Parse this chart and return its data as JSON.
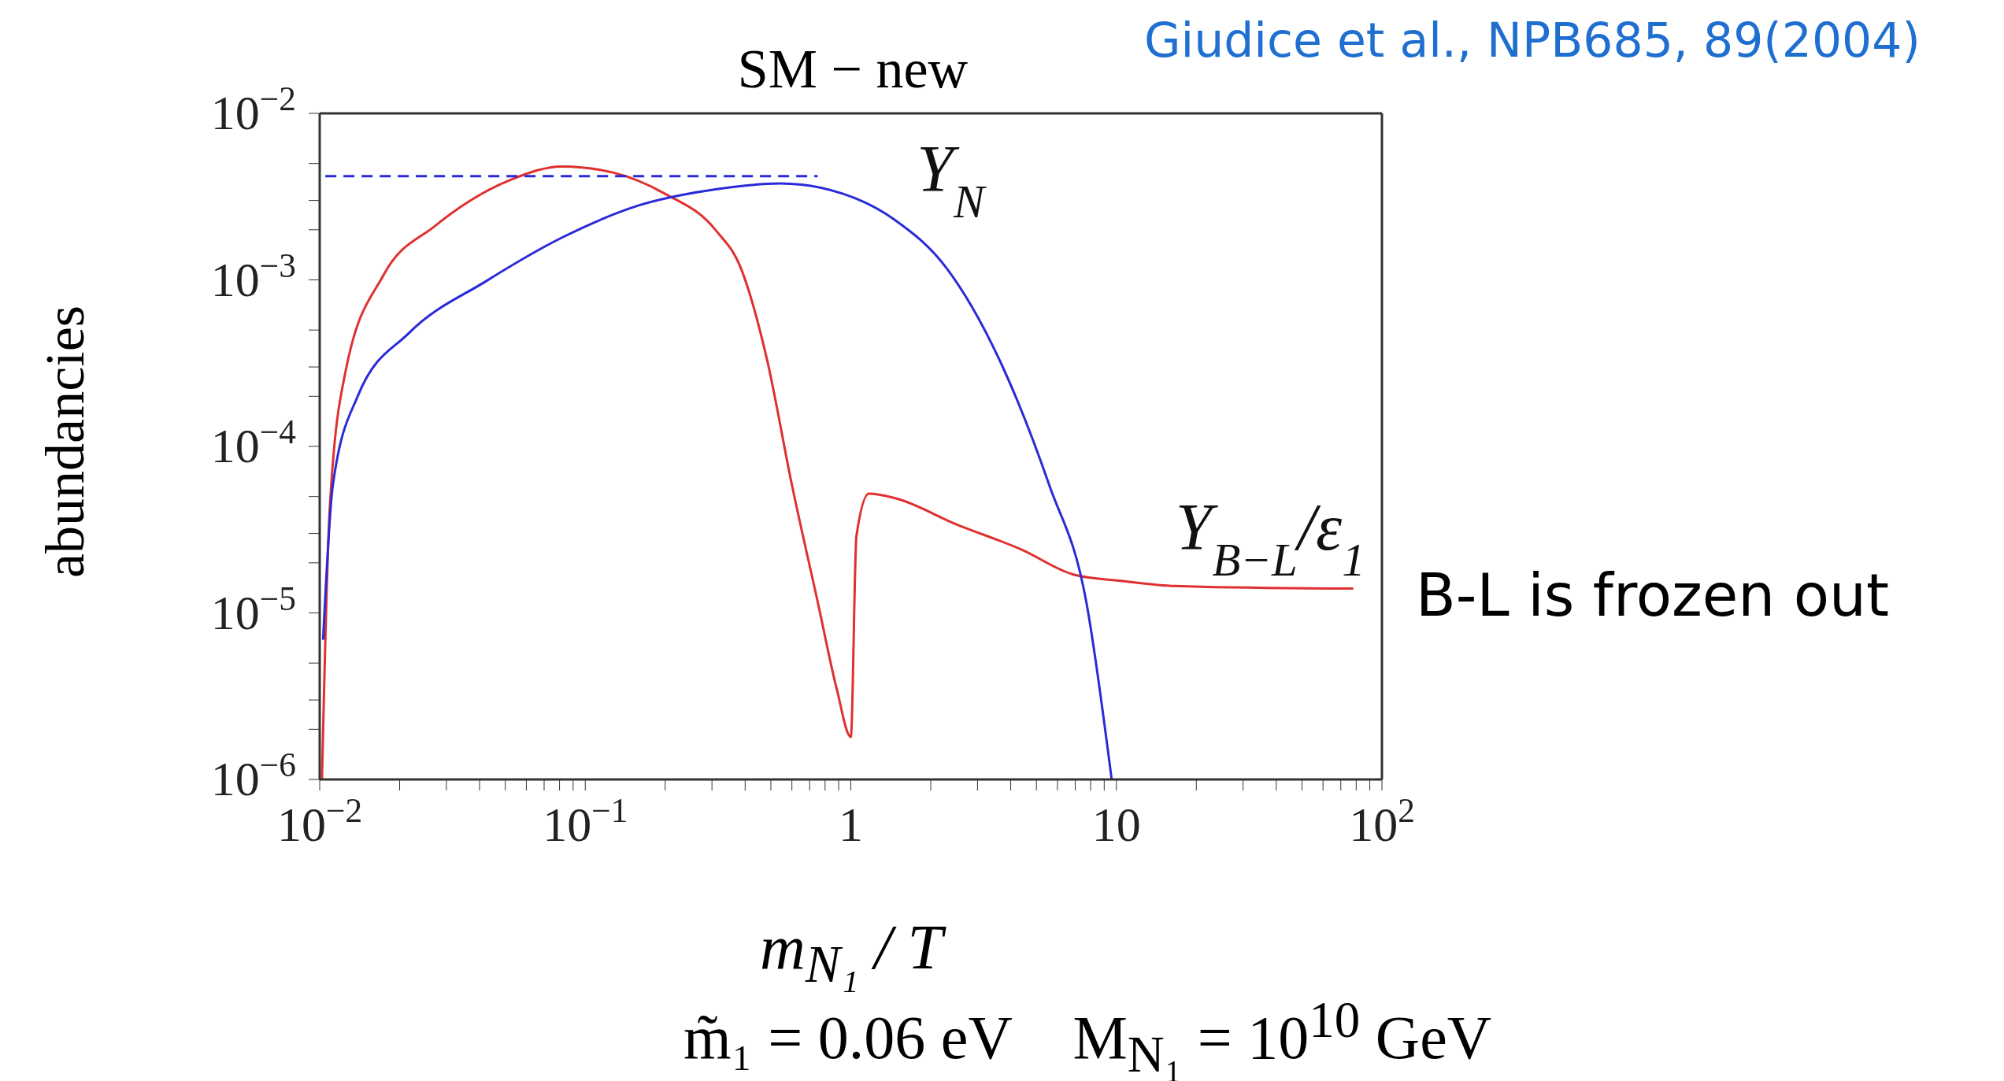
{
  "chart_data": {
    "type": "line",
    "title": "SM − new",
    "xlabel": "m$_{N₁}$ / T",
    "ylabel": "abundancies",
    "annotations": [
      "Giudice et al., NPB685, 89(2004)",
      "B-L is frozen out",
      "m̃₁ = 0.06 eV    M$_{N₁}$ = 10$^{10}$ GeV"
    ],
    "log": "xy",
    "marker": "none",
    "xlim": [
      0.01,
      100
    ],
    "ylim": [
      1e-06,
      0.01
    ],
    "xticks": [
      {
        "value": 0.01,
        "label": "10$^{−2}$"
      },
      {
        "value": 0.02,
        "label": null
      },
      {
        "value": 0.03,
        "label": null
      },
      {
        "value": 0.04,
        "label": null
      },
      {
        "value": 0.05,
        "label": null
      },
      {
        "value": 0.06,
        "label": null
      },
      {
        "value": 0.07,
        "label": null
      },
      {
        "value": 0.08,
        "label": null
      },
      {
        "value": 0.09,
        "label": null
      },
      {
        "value": 0.1,
        "label": "10$^{−1}$"
      },
      {
        "value": 0.2,
        "label": null
      },
      {
        "value": 0.3,
        "label": null
      },
      {
        "value": 0.4,
        "label": null
      },
      {
        "value": 0.5,
        "label": null
      },
      {
        "value": 0.6,
        "label": null
      },
      {
        "value": 0.7,
        "label": null
      },
      {
        "value": 0.8,
        "label": null
      },
      {
        "value": 0.9,
        "label": null
      },
      1,
      {
        "value": 2,
        "label": null
      },
      {
        "value": 3,
        "label": null
      },
      {
        "value": 4,
        "label": null
      },
      {
        "value": 5,
        "label": null
      },
      {
        "value": 6,
        "label": null
      },
      {
        "value": 7,
        "label": null
      },
      {
        "value": 8,
        "label": null
      },
      {
        "value": 9,
        "label": null
      },
      10,
      {
        "value": 20,
        "label": null
      },
      {
        "value": 30,
        "label": null
      },
      {
        "value": 40,
        "label": null
      },
      {
        "value": 50,
        "label": null
      },
      {
        "value": 60,
        "label": null
      },
      {
        "value": 70,
        "label": null
      },
      {
        "value": 80,
        "label": null
      },
      {
        "value": 90,
        "label": null
      },
      {
        "value": 100,
        "label": "10$^{2}$"
      }
    ],
    "yticks": [
      {
        "value": 1e-06,
        "label": "10$^{−6}$"
      },
      {
        "value": 2e-06,
        "label": null
      },
      {
        "value": 3e-06,
        "label": null
      },
      {
        "value": 5e-06,
        "label": null
      },
      {
        "value": 1e-05,
        "label": "10$^{−5}$"
      },
      {
        "value": 2e-05,
        "label": null
      },
      {
        "value": 3e-05,
        "label": null
      },
      {
        "value": 5e-05,
        "label": null
      },
      {
        "value": 0.0001,
        "label": "10$^{−4}$"
      },
      {
        "value": 0.0002,
        "label": null
      },
      {
        "value": 0.0003,
        "label": null
      },
      {
        "value": 0.0005,
        "label": null
      },
      {
        "value": 0.001,
        "label": "10$^{−3}$"
      },
      {
        "value": 0.002,
        "label": null
      },
      {
        "value": 0.003,
        "label": null
      },
      {
        "value": 0.005,
        "label": null
      },
      {
        "value": 0.01,
        "label": "10$^{−2}$"
      }
    ],
    "series": [
      {
        "name": "Y$_{B−L}$/ε$_{1}$",
        "color": "#e03030",
        "line_style": "solid",
        "x": [
          0.0102,
          0.0109,
          0.0125,
          0.0174,
          0.0271,
          0.0526,
          0.0819,
          0.128,
          0.199,
          0.309,
          0.386,
          0.482,
          0.601,
          0.75,
          0.885,
          1.0,
          1.05,
          1.17,
          1.46,
          2.5,
          4.4,
          6.9,
          10.7,
          16.6,
          78
        ],
        "values": [
          1e-06,
          4.1e-05,
          0.00028,
          0.00107,
          0.0021,
          0.004,
          0.0048,
          0.0044,
          0.0033,
          0.002,
          0.00117,
          0.00034,
          5.8e-05,
          1.17e-05,
          3.5e-06,
          1.8e-06,
          2.9e-05,
          5.2e-05,
          4.9e-05,
          3.4e-05,
          2.4e-05,
          1.7e-05,
          1.55e-05,
          1.45e-05,
          1.4e-05
        ]
      },
      {
        "name": "Y$_{N}$",
        "color": "#2a2ad8",
        "line_style": "solid",
        "x": [
          0.0103,
          0.0112,
          0.0139,
          0.0217,
          0.0422,
          0.082,
          0.159,
          0.309,
          0.54,
          0.93,
          1.46,
          2.3,
          3.6,
          5.6,
          7.7,
          9.6
        ],
        "values": [
          6.9e-06,
          5.8e-05,
          0.0002,
          0.00048,
          0.00098,
          0.0018,
          0.0028,
          0.0035,
          0.0038,
          0.0033,
          0.0023,
          0.00117,
          0.00034,
          5.8e-05,
          1.17e-05,
          1e-06
        ]
      },
      {
        "color": "#2a2ad8",
        "line_style": "dashed",
        "x": [
          0.0105,
          0.75
        ],
        "values": [
          0.0042,
          0.0042
        ]
      }
    ]
  }
}
